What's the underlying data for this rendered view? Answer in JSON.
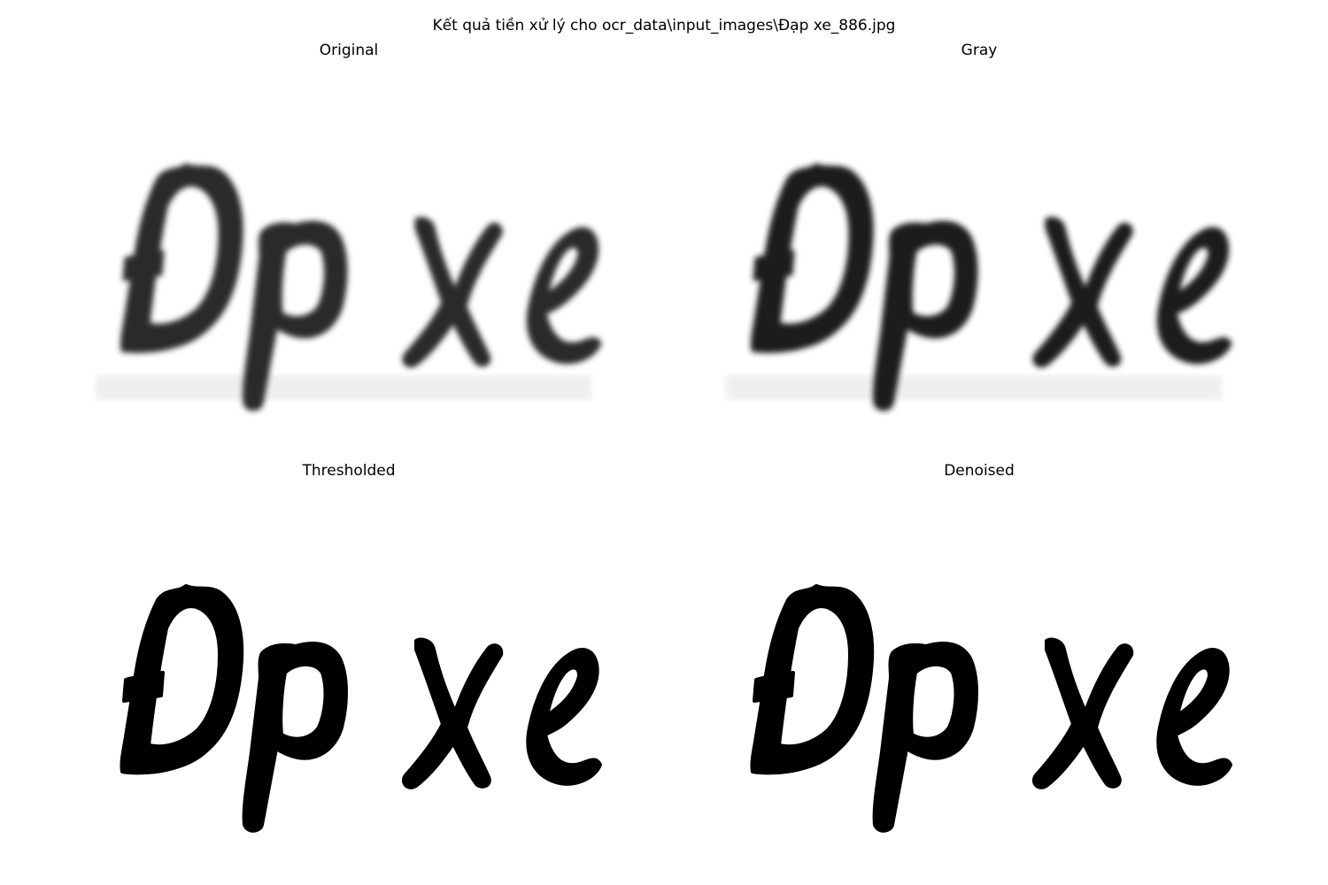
{
  "figure": {
    "suptitle": "Kết quả tiền xử lý cho ocr_data\\input_images\\Đạp xe_886.jpg"
  },
  "panels": [
    {
      "id": "original",
      "title": "Original",
      "ink": "#2a2a2a",
      "blur": true
    },
    {
      "id": "gray",
      "title": "Gray",
      "ink": "#1e1e1e",
      "blur": true
    },
    {
      "id": "thresh",
      "title": "Thresholded",
      "ink": "#000000",
      "blur": false
    },
    {
      "id": "denoise",
      "title": "Denoised",
      "ink": "#000000",
      "blur": false
    }
  ]
}
